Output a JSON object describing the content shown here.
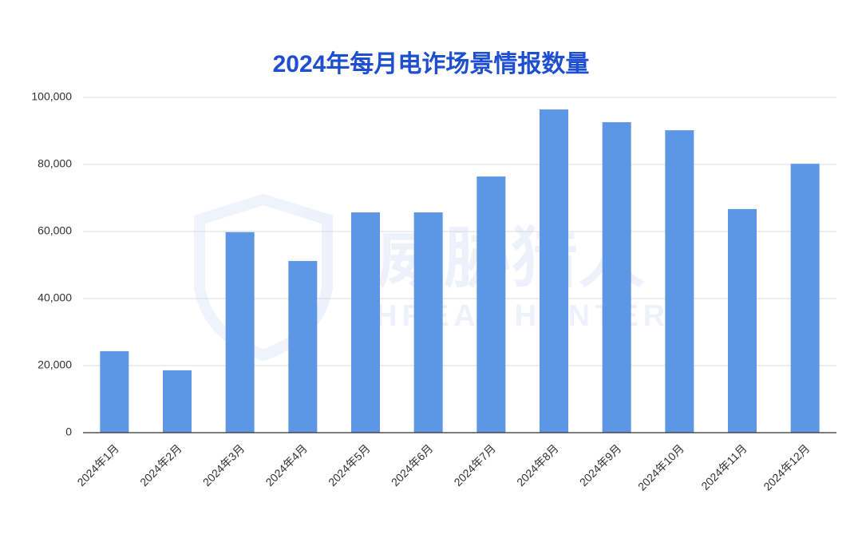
{
  "chart_data": {
    "type": "bar",
    "title": "2024年每月电诈场景情报数量",
    "watermark": "威胁猎人",
    "watermark_subtitle": "THREAT HUNTER",
    "categories": [
      "2024年1月",
      "2024年2月",
      "2024年3月",
      "2024年4月",
      "2024年5月",
      "2024年6月",
      "2024年7月",
      "2024年8月",
      "2024年9月",
      "2024年10月",
      "2024年11月",
      "2024年12月"
    ],
    "values": [
      24300,
      18600,
      59800,
      51200,
      65700,
      65700,
      76400,
      96400,
      92600,
      90200,
      66700,
      80200
    ],
    "color": "#5e96e6",
    "ylim": [
      0,
      100000
    ],
    "yticks": [
      0,
      {
        "value": 20000,
        "label": "20,000"
      },
      {
        "value": 40000,
        "label": "40,000"
      },
      {
        "value": 60000,
        "label": "60,000"
      },
      {
        "value": 80000,
        "label": "80,000"
      },
      {
        "value": 100000,
        "label": "100,000"
      }
    ],
    "grid": true
  }
}
